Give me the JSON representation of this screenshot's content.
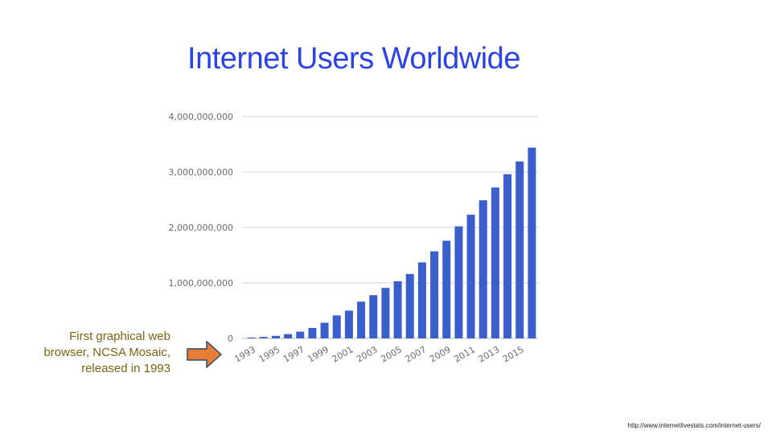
{
  "title": "Internet Users Worldwide",
  "callout": {
    "lines": [
      "First graphical web",
      "browser, NCSA Mosaic,",
      "released in 1993"
    ]
  },
  "source": "http://www.internetlivestats.com/internet-users/",
  "colors": {
    "title": "#2a43e6",
    "bar": "#3a5fcd",
    "arrow": "#e87b36",
    "callout": "#7a6410",
    "grid": "#d0d0d0"
  },
  "chart_data": {
    "type": "bar",
    "title": "",
    "xlabel": "",
    "ylabel": "",
    "ylim": [
      0,
      4000000000
    ],
    "yticks": [
      0,
      1000000000,
      2000000000,
      3000000000,
      4000000000
    ],
    "ytick_labels": [
      "0",
      "1,000,000,000",
      "2,000,000,000",
      "3,000,000,000",
      "4,000,000,000"
    ],
    "xtick_labels": [
      "1993",
      "1995",
      "1997",
      "1999",
      "2001",
      "2003",
      "2005",
      "2007",
      "2009",
      "2011",
      "2013",
      "2015"
    ],
    "grid": true,
    "categories": [
      "1993",
      "1994",
      "1995",
      "1996",
      "1997",
      "1998",
      "1999",
      "2000",
      "2001",
      "2002",
      "2003",
      "2004",
      "2005",
      "2006",
      "2007",
      "2008",
      "2009",
      "2010",
      "2011",
      "2012",
      "2013",
      "2014",
      "2015",
      "2016"
    ],
    "values": [
      14000000,
      25000000,
      45000000,
      77000000,
      121000000,
      188000000,
      281000000,
      414000000,
      500000000,
      662000000,
      779000000,
      910000000,
      1030000000,
      1160000000,
      1370000000,
      1570000000,
      1760000000,
      2020000000,
      2230000000,
      2490000000,
      2720000000,
      2960000000,
      3190000000,
      3440000000
    ]
  }
}
